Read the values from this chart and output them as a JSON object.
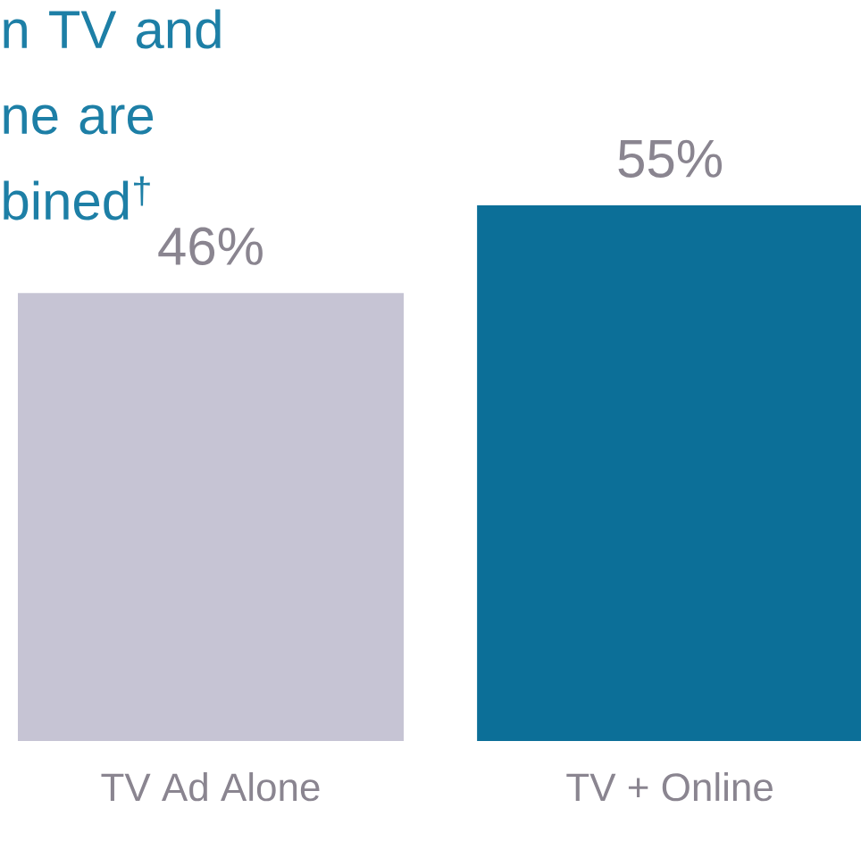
{
  "chart_data": {
    "type": "bar",
    "title": "n TV and ne are bined$^{†}$",
    "categories": [
      "TV Ad Alone",
      "TV + Online"
    ],
    "values": [
      46,
      55
    ],
    "colors": [
      "#c6c4d4",
      "#0c6f98"
    ],
    "value_labels": [
      "46%",
      "55%"
    ]
  }
}
